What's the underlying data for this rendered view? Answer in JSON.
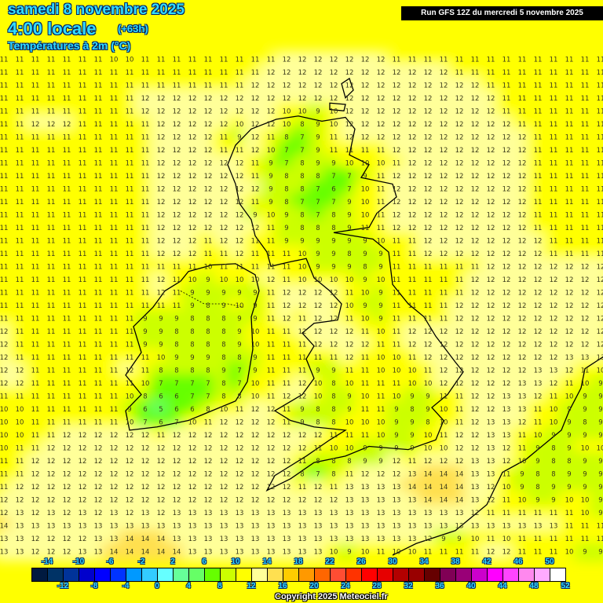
{
  "header": {
    "date": "samedi 8 novembre 2025",
    "time": "4:00 locale",
    "lead": "(+63h)",
    "parameter": "Températures à 2m (°C)",
    "run": "Run GFS 12Z du mercredi 5 novembre 2025"
  },
  "copyright": "Copyright 2025 Meteociel.fr",
  "legend": {
    "top_labels": [
      "-14",
      "-10",
      "-6",
      "-2",
      "2",
      "6",
      "10",
      "14",
      "18",
      "22",
      "26",
      "30",
      "34",
      "38",
      "42",
      "46",
      "50"
    ],
    "bottom_labels": [
      "-12",
      "-8",
      "-4",
      "0",
      "4",
      "8",
      "12",
      "16",
      "20",
      "24",
      "28",
      "32",
      "36",
      "40",
      "44",
      "48",
      "52"
    ],
    "colors": [
      "#001a40",
      "#003366",
      "#003399",
      "#0000cc",
      "#0000ff",
      "#0033ff",
      "#0099ff",
      "#33ccff",
      "#66ffff",
      "#66ff99",
      "#66ff66",
      "#66ff00",
      "#ccff00",
      "#ffff00",
      "#ffff99",
      "#ffe050",
      "#ffcc00",
      "#ff9900",
      "#ff6600",
      "#ff4d33",
      "#ff3300",
      "#ff0000",
      "#e60000",
      "#b30000",
      "#990000",
      "#660000",
      "#800055",
      "#990077",
      "#cc00cc",
      "#ff00ff",
      "#ff44ff",
      "#ff88ee",
      "#ffaaff",
      "#ffffff"
    ]
  },
  "grid_rows": [
    "11 11 11 11 11 11 11 10 10 11 11 11 11 11 11 11 11 11 12 12 12 12 12 12 12 11 11 11 11 11 11 11 11 11 11 11 11 11 11",
    "11 11 11 11 11 11 11 11 11 11 11 11 11 11 11 11 11 12 12 12 12 12 12 12 12 12 12 12 12 11 11 11 11 11 11 11 11 11 11",
    "11 11 11 11 11 11 11 11 11 11 11 11 11 11 11 11 12 12 12 12 12 12 12 12 12 12 12 12 12 12 12 11 11 11 11 11 11 11 11",
    "11 11 11 11 11 11 11 11 11 12 12 12 12 12 12 12 12 12 12 12 12 12 12 12 12 12 12 12 12 12 12 12 11 11 11 11 11 11 11",
    "11 11 11 11 11 11 11 11 11 12 12 12 12 12 12 12 12 12 10 10 9 10 12 12 12 12 12 12 12 12 12 12 11 11 11 11 11 11 11",
    "11 11 12 12 12 11 11 11 11 11 12 12 12 12 12 10 12 12 10 8 9 10 12 12 12 12 12 12 12 12 12 12 12 11 11 11 11 11 11",
    "11 11 11 11 11 11 11 11 11 11 12 12 12 12 11 9 12 11 8 7 9 11 12 12 12 12 12 12 12 12 12 12 12 12 11 11 11 11 11",
    "11 11 11 11 11 11 11 11 11 11 12 12 12 12 11 11 12 10 7 7 9 11 11 11 11 12 12 12 12 12 12 12 12 12 11 11 11 11 11",
    "11 11 11 11 11 11 11 11 11 11 12 12 12 12 12 12 11 9 7 8 9 9 10 10 10 11 12 12 12 12 12 12 12 12 11 11 11 11 11",
    "11 11 11 11 11 11 11 11 11 11 12 12 12 12 12 12 11 9 8 8 8 7 7 9 11 12 12 12 12 12 12 12 12 12 11 11 11 11 11",
    "11 11 11 11 11 11 11 11 11 11 12 12 12 12 12 12 12 9 8 8 7 6 7 10 11 12 12 12 12 12 12 12 12 12 11 11 11 11 11",
    "11 11 11 11 11 11 11 11 11 11 12 12 12 12 12 12 11 9 8 7 7 7 9 10 11 12 12 12 12 12 12 12 12 12 11 11 11 11 11",
    "11 11 11 11 11 11 11 11 11 11 12 12 12 12 12 12 9 10 9 8 7 8 9 10 11 12 12 12 12 12 12 12 12 12 11 11 11 11 11",
    "11 11 11 11 11 11 11 11 11 11 12 12 12 12 12 12 12 11 9 8 8 8 9 11 11 12 12 12 12 12 12 12 12 12 11 11 11 11 11",
    "11 11 11 11 11 11 11 11 11 11 12 12 12 11 12 12 11 11 9 9 9 9 9 9 10 11 11 12 12 12 12 12 12 12 12 11 11 11 11",
    "11 11 11 11 11 11 11 11 11 11 12 12 12 11 11 12 11 11 11 10 9 9 8 9 9 11 11 12 12 12 12 12 12 12 12 11 11 11 11",
    "11 11 11 11 11 11 11 11 11 11 11 11 11 10 11 11 11 11 11 10 9 9 9 8 9 11 11 11 11 11 11 12 12 12 12 12 12 12 12",
    "11 11 11 11 11 11 11 11 11 11 12 11 10 9 10 10 10 12 11 10 10 10 10 9 10 11 11 11 11 11 12 12 12 12 12 12 12 12 12",
    "11 11 11 11 11 11 11 11 11 11 12 11 9 9 9 9 9 11 12 12 12 12 11 10 9 11 11 11 11 11 12 12 12 12 12 12 12 12 12",
    "11 11 11 11 11 11 11 11 11 11 11 11 9 8 9 10 9 11 12 12 12 12 10 9 9 11 11 11 11 12 12 12 12 12 12 12 12 12 12",
    "11 11 11 11 11 11 11 11 11 9 9 9 8 8 8 9 9 11 12 11 12 12 11 10 9 11 11 11 11 12 12 12 12 12 12 12 12 12 12",
    "12 11 11 11 11 11 11 11 11 9 9 8 8 8 8 9 10 11 11 12 12 12 12 11 10 11 12 12 12 12 12 12 12 12 12 12 12 12 12",
    "12 11 11 11 11 11 11 11 11 9 9 8 8 8 8 9 10 11 11 11 12 12 12 12 11 11 12 12 12 12 12 12 12 12 12 12 12 12 12",
    "12 11 11 11 11 11 11 11 11 11 10 9 9 9 8 8 9 11 11 11 11 11 12 11 10 10 11 12 12 12 12 12 12 12 12 12 13 13 13",
    "12 12 11 11 11 11 11 11 12 11 8 8 8 8 9 7 9 11 11 11 9 9 11 11 10 10 10 11 12 12 12 12 12 12 13 13 12 11 10",
    "12 12 11 11 11 11 11 11 11 10 7 7 7 7 8 7 10 11 11 12 10 8 10 11 11 11 10 10 12 12 12 12 12 13 13 12 11 10 9",
    "11 11 11 11 11 11 11 11 10 8 6 6 7 7 8 8 10 11 12 12 10 8 9 10 11 10 9 9 11 11 12 12 13 13 12 11 10 9 9",
    "10 10 11 11 11 11 11 11 9 6 5 6 6 8 10 11 12 12 11 9 8 8 9 11 11 9 8 9 10 11 12 12 13 13 11 10 9 9 9",
    "10 10 11 11 11 11 11 11 10 7 6 7 10 11 12 12 12 12 11 9 8 8 10 10 10 9 9 8 10 11 12 13 13 12 11 10 9 8 9",
    "10 10 11 11 12 12 12 12 12 12 11 12 12 12 12 12 12 12 12 12 12 11 11 11 10 9 9 10 11 12 12 13 13 11 10 9 9 9 9",
    "10 11 11 12 12 12 12 12 12 12 12 12 12 12 12 12 12 12 12 12 11 10 10 9 9 9 9 10 10 12 12 13 12 11 9 8 9 10 10",
    "11 11 12 12 12 12 12 12 12 12 12 12 12 12 12 12 12 12 12 11 8 8 8 9 9 12 11 12 12 12 13 13 12 10 9 8 8 9 9",
    "11 11 12 12 12 12 12 12 12 12 12 12 12 12 12 12 12 12 12 8 7 8 11 12 12 12 13 14 14 14 13 13 11 9 8 8 9 9 9",
    "11 12 12 12 12 12 12 12 12 12 12 12 12 12 12 12 12 12 12 11 12 11 13 13 13 13 14 14 14 14 13 12 10 9 8 9 9 9 9",
    "12 12 12 12 12 12 12 12 12 12 12 12 12 12 12 12 12 12 12 12 12 12 13 13 13 13 13 14 14 14 13 12 11 10 9 9 10 10 9",
    "12 13 12 13 12 13 12 13 12 13 12 13 13 13 13 13 13 13 13 13 13 13 13 13 13 13 13 13 13 13 12 11 11 11 11 11 11 10 9",
    "14 13 13 13 13 13 13 13 13 13 13 13 13 13 13 13 13 13 13 13 13 13 13 13 13 13 13 13 13 13 13 13 13 13 13 13 11 11 11",
    "13 13 12 12 12 12 13 13 14 14 14 13 13 13 13 13 13 13 13 13 13 13 13 13 13 13 13 12 9 9 10 11 10 11 11 11 11 11 11",
    "13 13 12 12 12 13 13 14 14 14 14 14 13 13 13 13 13 13 13 13 13 10 9 10 11 10 10 11 11 11 11 12 12 11 11 11 10 9 9"
  ]
}
